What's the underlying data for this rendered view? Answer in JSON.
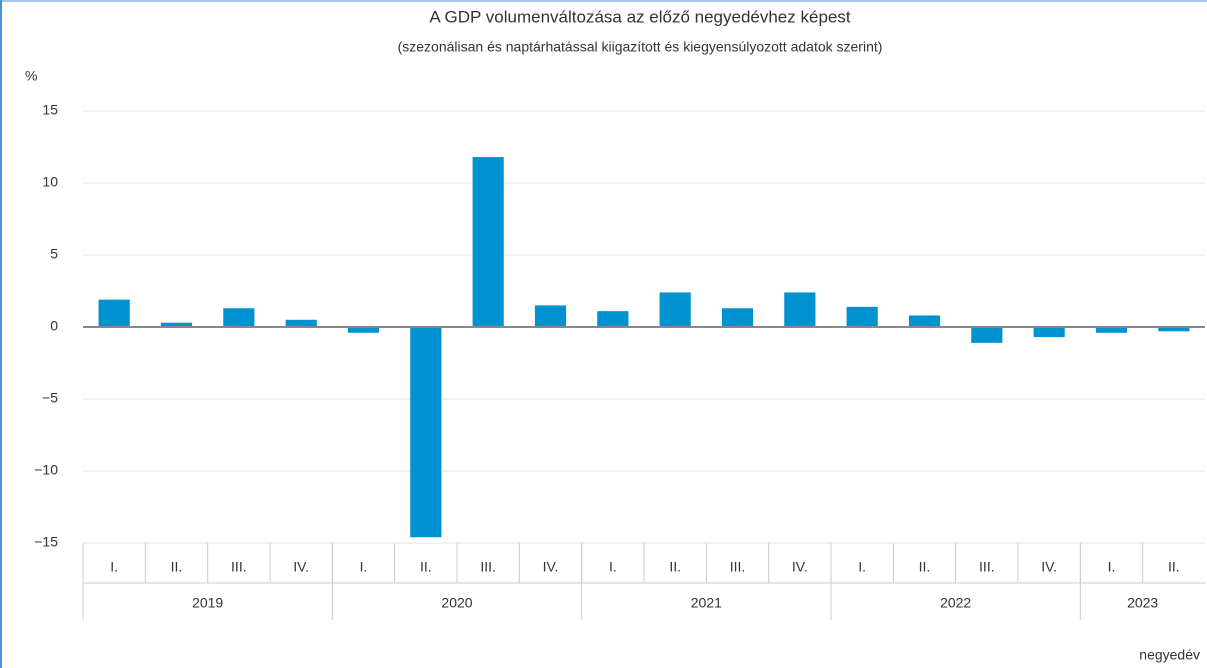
{
  "chart_data": {
    "type": "bar",
    "title": "A GDP volumenváltozása az előző negyedévhez képest",
    "subtitle": "(szezonálisan és naptárhatással kiigazított és kiegyensúlyozott adatok szerint)",
    "y_label": "%",
    "x_label": "negyedév",
    "categories": [
      "I.",
      "II.",
      "III.",
      "IV.",
      "I.",
      "II.",
      "III.",
      "IV.",
      "I.",
      "II.",
      "III.",
      "IV.",
      "I.",
      "II.",
      "III.",
      "IV.",
      "I.",
      "II."
    ],
    "groups": [
      {
        "label": "2019",
        "count": 4
      },
      {
        "label": "2020",
        "count": 4
      },
      {
        "label": "2021",
        "count": 4
      },
      {
        "label": "2022",
        "count": 4
      },
      {
        "label": "2023",
        "count": 2
      }
    ],
    "values": [
      1.9,
      0.3,
      1.3,
      0.5,
      -0.4,
      -14.6,
      11.8,
      1.5,
      1.1,
      2.4,
      1.3,
      2.4,
      1.4,
      0.8,
      -1.1,
      -0.7,
      -0.4,
      -0.3
    ],
    "color": "#0091d0",
    "ylim": [
      -15,
      15
    ],
    "yticks": [
      {
        "value": -15,
        "label": "−15"
      },
      {
        "value": -10,
        "label": "−10"
      },
      {
        "value": -5,
        "label": "−5"
      },
      0,
      5,
      10,
      15
    ],
    "grid": true
  }
}
